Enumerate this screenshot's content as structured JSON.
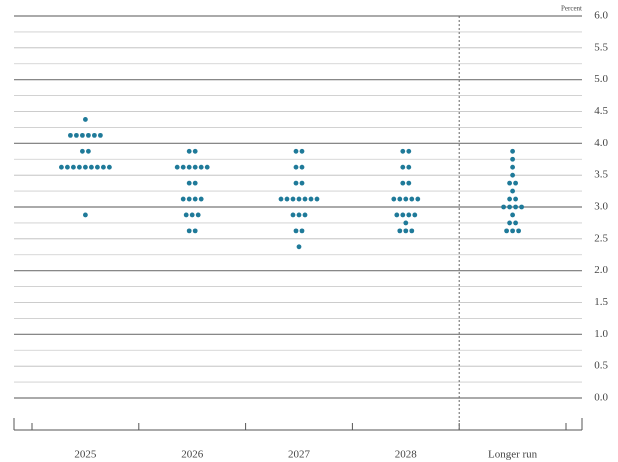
{
  "chart_data": {
    "type": "dot",
    "title": "Percent",
    "categories": [
      "2025",
      "2026",
      "2027",
      "2028",
      "Longer run"
    ],
    "series": [
      {
        "color": "#1f7a99",
        "values": [
          [
            4.375,
            4.125,
            4.125,
            4.125,
            4.125,
            4.125,
            4.125,
            3.875,
            3.875,
            3.625,
            3.625,
            3.625,
            3.625,
            3.625,
            3.625,
            3.625,
            3.625,
            3.625,
            2.875
          ],
          [
            3.875,
            3.875,
            3.625,
            3.625,
            3.625,
            3.625,
            3.625,
            3.625,
            3.375,
            3.375,
            3.125,
            3.125,
            3.125,
            3.125,
            2.875,
            2.875,
            2.875,
            2.625,
            2.625
          ],
          [
            3.875,
            3.875,
            3.625,
            3.625,
            3.375,
            3.375,
            3.125,
            3.125,
            3.125,
            3.125,
            3.125,
            3.125,
            3.125,
            2.875,
            2.875,
            2.875,
            2.625,
            2.625,
            2.375
          ],
          [
            3.875,
            3.875,
            3.625,
            3.625,
            3.375,
            3.375,
            3.125,
            3.125,
            3.125,
            3.125,
            3.125,
            2.875,
            2.875,
            2.875,
            2.875,
            2.75,
            2.625,
            2.625,
            2.625
          ],
          [
            3.875,
            3.75,
            3.625,
            3.5,
            3.375,
            3.375,
            3.25,
            3.125,
            3.125,
            3.0,
            3.0,
            3.0,
            3.0,
            2.875,
            2.75,
            2.75,
            2.625,
            2.625,
            2.625
          ]
        ]
      }
    ],
    "ylim": [
      0,
      6
    ],
    "yticks": [
      {
        "value": 0,
        "label": "0.0"
      },
      0.5,
      {
        "value": 1,
        "label": "1.0"
      },
      1.5,
      {
        "value": 2,
        "label": "2.0"
      },
      2.5,
      {
        "value": 3,
        "label": "3.0"
      },
      3.5,
      {
        "value": 4,
        "label": "4.0"
      },
      4.5,
      {
        "value": 5,
        "label": "5.0"
      },
      5.5,
      {
        "value": 6,
        "label": "6.0"
      }
    ],
    "y_minor_ticks": [
      0.25,
      0.75,
      1.25,
      1.75,
      2.25,
      2.75,
      3.25,
      3.75,
      4.25,
      4.75,
      5.25,
      5.75
    ],
    "grid": true
  }
}
